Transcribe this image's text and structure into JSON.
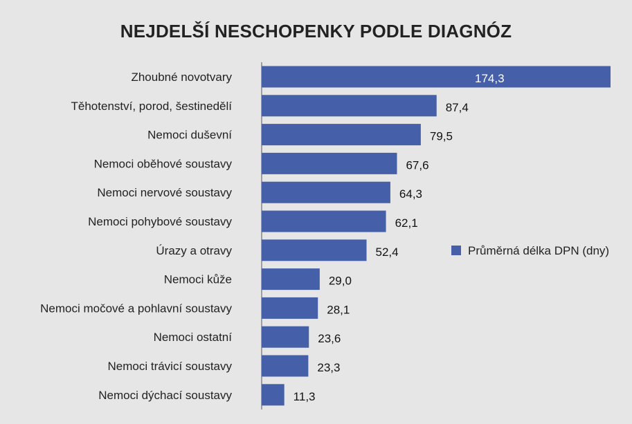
{
  "chart_data": {
    "type": "bar",
    "orientation": "horizontal",
    "title": "NEJDELŠÍ NESCHOPENKY PODLE DIAGNÓZ",
    "categories": [
      "Zhoubné novotvary",
      "Těhotenství, porod, šestinedělí",
      "Nemoci duševní",
      "Nemoci oběhové soustavy",
      "Nemoci nervové soustavy",
      "Nemoci pohybové soustavy",
      "Úrazy a otravy",
      "Nemoci kůže",
      "Nemoci močové a pohlavní soustavy",
      "Nemoci ostatní",
      "Nemoci trávicí soustavy",
      "Nemoci dýchací soustavy"
    ],
    "series": [
      {
        "name": "Průměrná délka DPN (dny)",
        "values": [
          174.3,
          87.4,
          79.5,
          67.6,
          64.3,
          62.1,
          52.4,
          29.0,
          28.1,
          23.6,
          23.3,
          11.3
        ],
        "value_labels": [
          "174,3",
          "87,4",
          "79,5",
          "67,6",
          "64,3",
          "62,1",
          "52,4",
          "29,0",
          "28,1",
          "23,6",
          "23,3",
          "11,3"
        ]
      }
    ],
    "xlim": [
      0,
      174.3
    ],
    "grid": false,
    "legend": "right",
    "colors": {
      "bar": "#4560a8",
      "axis": "#555555",
      "background": "#e6e6e6"
    }
  }
}
